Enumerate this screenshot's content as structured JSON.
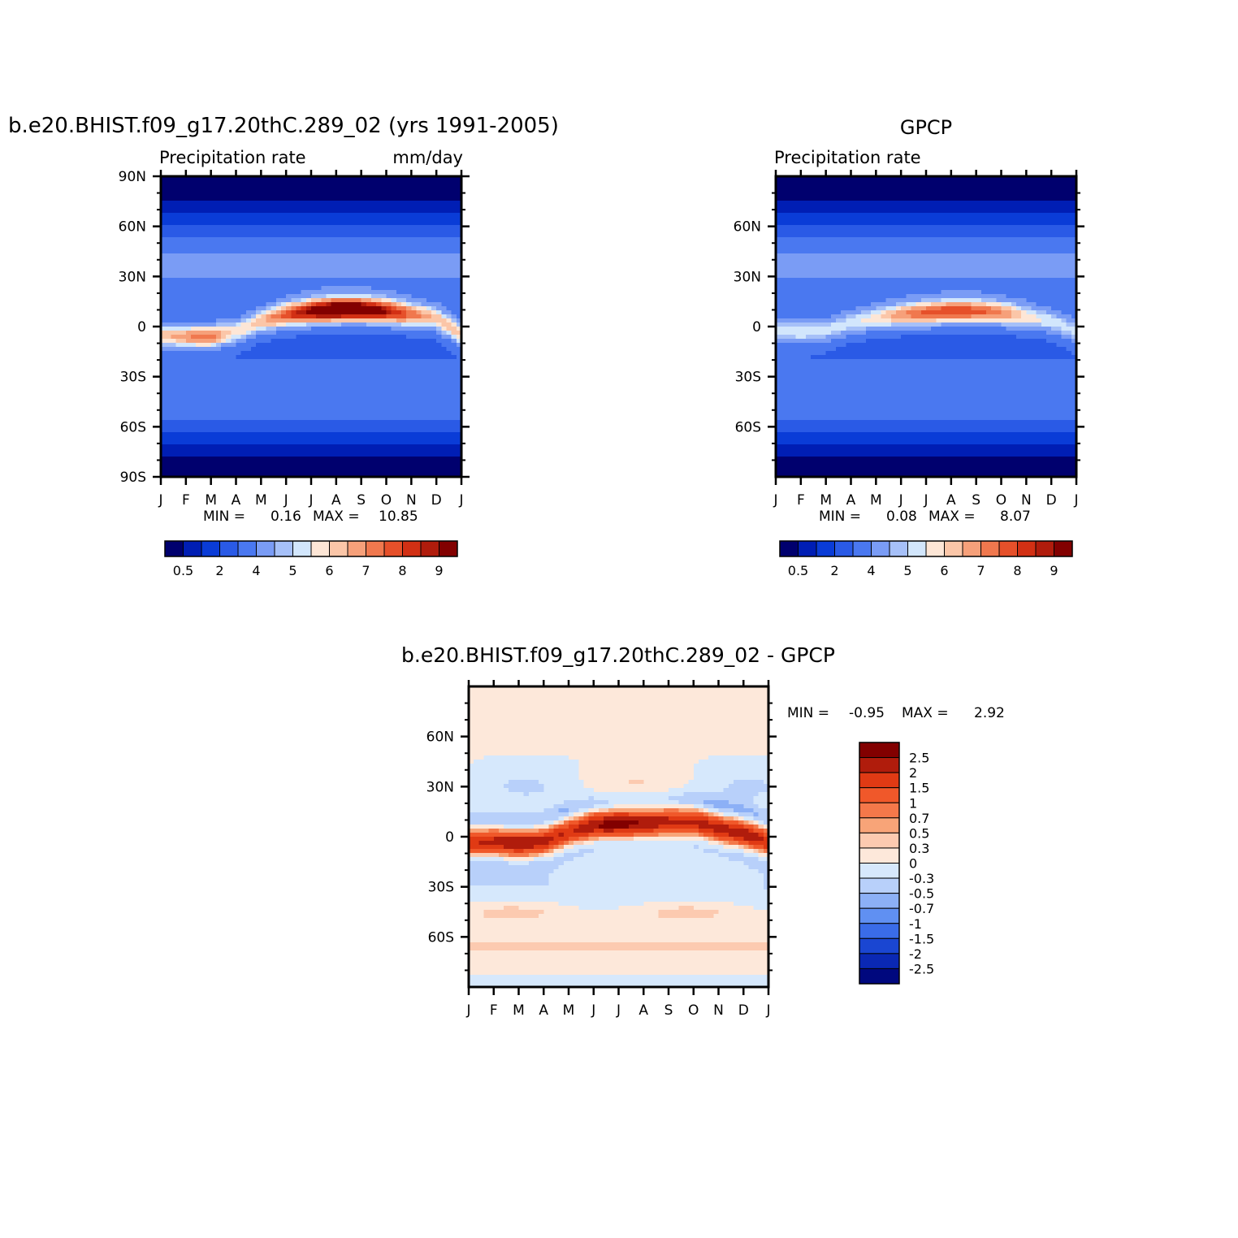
{
  "chart_data": [
    {
      "id": "model",
      "type": "heatmap",
      "title": "b.e20.BHIST.f09_g17.20thC.289_02 (yrs 1991-2005)",
      "subtitle_left": "Precipitation rate",
      "subtitle_right": "mm/day",
      "x_tick_labels": [
        "J",
        "F",
        "M",
        "A",
        "M",
        "J",
        "J",
        "A",
        "S",
        "O",
        "N",
        "D",
        "J"
      ],
      "y_tick_labels": [
        "90N",
        "60N",
        "30N",
        "0",
        "30S",
        "60S",
        "90S"
      ],
      "ylim": [
        -90,
        90
      ],
      "min_label": "MIN =",
      "min_value": "0.16",
      "max_label": "MAX =",
      "max_value": "10.85",
      "colorbar": {
        "colors": [
          "#00006e",
          "#001eb4",
          "#0a3cd7",
          "#2a5ae6",
          "#4a78f0",
          "#7a9cf5",
          "#a6c0f8",
          "#d2e6fc",
          "#fde6d6",
          "#fbc6a8",
          "#f6a07a",
          "#f0784e",
          "#e6502a",
          "#d23014",
          "#b01c0c",
          "#820000"
        ],
        "tick_labels": [
          "0.5",
          "2",
          "4",
          "5",
          "6",
          "7",
          "8",
          "9"
        ]
      },
      "fields": {
        "itcz": [
          {
            "month": 0,
            "lat": -5,
            "value": 6.5
          },
          {
            "month": 1,
            "lat": -6,
            "value": 7.2
          },
          {
            "month": 2,
            "lat": -6,
            "value": 7.5
          },
          {
            "month": 3,
            "lat": -3,
            "value": 6.0
          },
          {
            "month": 4,
            "lat": 3,
            "value": 6.5
          },
          {
            "month": 5,
            "lat": 7,
            "value": 8.0
          },
          {
            "month": 6,
            "lat": 9,
            "value": 9.5
          },
          {
            "month": 7,
            "lat": 10,
            "value": 10.5
          },
          {
            "month": 8,
            "lat": 10,
            "value": 10.2
          },
          {
            "month": 9,
            "lat": 9,
            "value": 9.0
          },
          {
            "month": 10,
            "lat": 7,
            "value": 7.5
          },
          {
            "month": 11,
            "lat": 5,
            "value": 6.5
          },
          {
            "month": 12,
            "lat": -5,
            "value": 6.5
          }
        ]
      }
    },
    {
      "id": "obs",
      "type": "heatmap",
      "title": "GPCP",
      "subtitle_left": "Precipitation rate",
      "x_tick_labels": [
        "J",
        "F",
        "M",
        "A",
        "M",
        "J",
        "J",
        "A",
        "S",
        "O",
        "N",
        "D",
        "J"
      ],
      "y_tick_labels": [
        "60N",
        "30N",
        "0",
        "30S",
        "60S"
      ],
      "ylim": [
        -90,
        90
      ],
      "min_label": "MIN =",
      "min_value": "0.08",
      "max_label": "MAX =",
      "max_value": "8.07",
      "colorbar": {
        "colors": [
          "#00006e",
          "#001eb4",
          "#0a3cd7",
          "#2a5ae6",
          "#4a78f0",
          "#7a9cf5",
          "#a6c0f8",
          "#d2e6fc",
          "#fde6d6",
          "#fbc6a8",
          "#f6a07a",
          "#f0784e",
          "#e6502a",
          "#d23014",
          "#b01c0c",
          "#820000"
        ],
        "tick_labels": [
          "0.5",
          "2",
          "4",
          "5",
          "6",
          "7",
          "8",
          "9"
        ]
      },
      "fields": {
        "itcz": [
          {
            "month": 0,
            "lat": -3,
            "value": 5.5
          },
          {
            "month": 1,
            "lat": -3,
            "value": 5.8
          },
          {
            "month": 2,
            "lat": -2,
            "value": 5.5
          },
          {
            "month": 3,
            "lat": 2,
            "value": 5.5
          },
          {
            "month": 4,
            "lat": 5,
            "value": 6.0
          },
          {
            "month": 5,
            "lat": 7,
            "value": 7.0
          },
          {
            "month": 6,
            "lat": 8,
            "value": 7.8
          },
          {
            "month": 7,
            "lat": 9,
            "value": 8.0
          },
          {
            "month": 8,
            "lat": 9,
            "value": 7.8
          },
          {
            "month": 9,
            "lat": 8,
            "value": 7.2
          },
          {
            "month": 10,
            "lat": 6,
            "value": 6.0
          },
          {
            "month": 11,
            "lat": 3,
            "value": 5.5
          },
          {
            "month": 12,
            "lat": -3,
            "value": 5.5
          }
        ]
      }
    },
    {
      "id": "diff",
      "type": "heatmap",
      "title": "b.e20.BHIST.f09_g17.20thC.289_02 - GPCP",
      "x_tick_labels": [
        "J",
        "F",
        "M",
        "A",
        "M",
        "J",
        "J",
        "A",
        "S",
        "O",
        "N",
        "D",
        "J"
      ],
      "y_tick_labels": [
        "60N",
        "30N",
        "0",
        "30S",
        "60S"
      ],
      "ylim": [
        -90,
        90
      ],
      "min_label": "MIN =",
      "min_value": "-0.95",
      "max_label": "MAX =",
      "max_value": "2.92",
      "colorbar": {
        "colors": [
          "#820000",
          "#b01c0c",
          "#e03a14",
          "#f0582a",
          "#f4784a",
          "#f8a478",
          "#fccab0",
          "#fde8da",
          "#d6e8fc",
          "#b8d0fa",
          "#8cb0f6",
          "#6090f2",
          "#3a6ce8",
          "#1a46d2",
          "#0a28b4",
          "#00087e"
        ],
        "tick_labels": [
          "2.5",
          "2",
          "1.5",
          "1",
          "0.7",
          "0.5",
          "0.3",
          "0",
          "-0.3",
          "-0.5",
          "-0.7",
          "-1",
          "-1.5",
          "-2",
          "-2.5"
        ]
      },
      "fields": {
        "itcz": [
          {
            "month": 0,
            "lat": -3,
            "value": 2.0
          },
          {
            "month": 1,
            "lat": -3,
            "value": 2.2
          },
          {
            "month": 2,
            "lat": -4,
            "value": 2.5
          },
          {
            "month": 3,
            "lat": -3,
            "value": 2.2
          },
          {
            "month": 4,
            "lat": 3,
            "value": 2.0
          },
          {
            "month": 5,
            "lat": 7,
            "value": 2.5
          },
          {
            "month": 6,
            "lat": 8,
            "value": 2.9
          },
          {
            "month": 7,
            "lat": 8,
            "value": 2.5
          },
          {
            "month": 8,
            "lat": 9,
            "value": 2.2
          },
          {
            "month": 9,
            "lat": 9,
            "value": 2.2
          },
          {
            "month": 10,
            "lat": 5,
            "value": 2.2
          },
          {
            "month": 11,
            "lat": 2,
            "value": 2.4
          },
          {
            "month": 12,
            "lat": -3,
            "value": 2.0
          }
        ]
      }
    }
  ]
}
